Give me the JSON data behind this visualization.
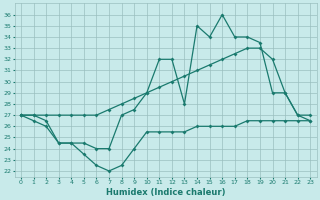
{
  "hours": [
    0,
    1,
    2,
    3,
    4,
    5,
    6,
    7,
    8,
    9,
    10,
    11,
    12,
    13,
    14,
    15,
    16,
    17,
    18,
    19,
    20,
    21,
    22,
    23
  ],
  "max_line": [
    27,
    27,
    26.5,
    24.5,
    24.5,
    24.5,
    24,
    24,
    27,
    27.5,
    29,
    32,
    32,
    28,
    35,
    34,
    36,
    34,
    34,
    33.5,
    29,
    29,
    27,
    27
  ],
  "mean_line": [
    27,
    27,
    27,
    27,
    27,
    27,
    27,
    27.5,
    28,
    28.5,
    29,
    29.5,
    30,
    30.5,
    31,
    31.5,
    32,
    32.5,
    33,
    33,
    32,
    29,
    27,
    26.5
  ],
  "min_line": [
    27,
    26.5,
    26,
    24.5,
    24.5,
    23.5,
    22.5,
    22,
    22.5,
    24,
    25.5,
    25.5,
    25.5,
    25.5,
    26,
    26,
    26,
    26,
    26.5,
    26.5,
    26.5,
    26.5,
    26.5,
    26.5
  ],
  "line_color": "#1a7a6e",
  "background_color": "#c8eaea",
  "grid_color": "#9bbfbf",
  "xlabel": "Humidex (Indice chaleur)",
  "ylim": [
    21.5,
    37
  ],
  "yticks": [
    22,
    23,
    24,
    25,
    26,
    27,
    28,
    29,
    30,
    31,
    32,
    33,
    34,
    35,
    36
  ],
  "xticks": [
    0,
    1,
    2,
    3,
    4,
    5,
    6,
    7,
    8,
    9,
    10,
    11,
    12,
    13,
    14,
    15,
    16,
    17,
    18,
    19,
    20,
    21,
    22,
    23
  ]
}
